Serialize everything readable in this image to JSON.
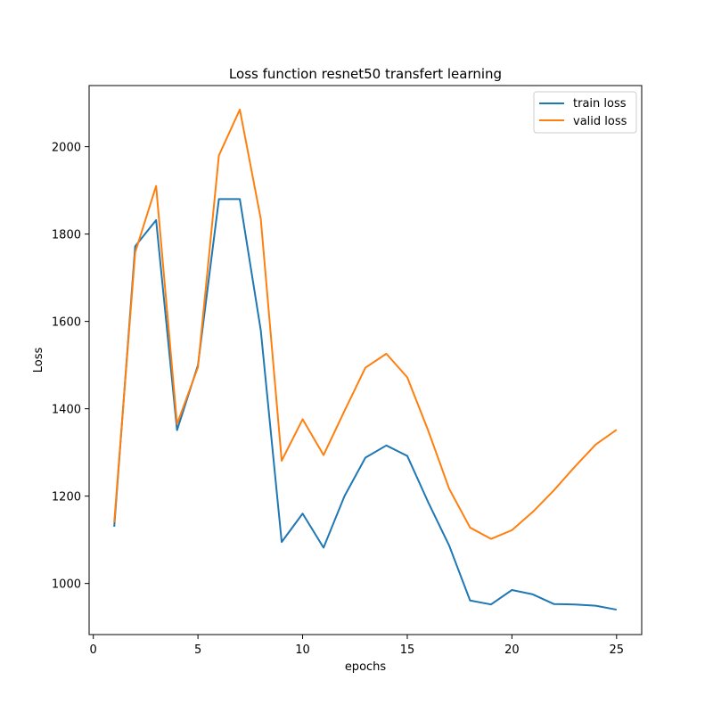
{
  "chart_data": {
    "type": "line",
    "title": "Loss function resnet50 transfert learning",
    "xlabel": "epochs",
    "ylabel": "Loss",
    "xlim": [
      -0.2,
      26.2
    ],
    "ylim": [
      883,
      2140
    ],
    "xticks": [
      0,
      5,
      10,
      15,
      20,
      25
    ],
    "yticks": [
      1000,
      1200,
      1400,
      1600,
      1800,
      2000
    ],
    "grid": false,
    "legend_position": "top-right",
    "x": [
      1,
      2,
      3,
      4,
      5,
      6,
      7,
      8,
      9,
      10,
      11,
      12,
      13,
      14,
      15,
      16,
      17,
      18,
      19,
      20,
      21,
      22,
      23,
      24,
      25
    ],
    "series": [
      {
        "name": "train loss",
        "color": "#1f77b4",
        "values": [
          1130,
          1772,
          1832,
          1351,
          1500,
          1880,
          1880,
          1580,
          1095,
          1160,
          1082,
          1200,
          1288,
          1316,
          1292,
          1186,
          1087,
          961,
          952,
          985,
          975,
          953,
          952,
          949,
          940
        ]
      },
      {
        "name": "valid loss",
        "color": "#ff7f0e",
        "values": [
          1140,
          1758,
          1910,
          1365,
          1495,
          1980,
          2085,
          1835,
          1281,
          1376,
          1294,
          1395,
          1494,
          1526,
          1472,
          1350,
          1217,
          1128,
          1102,
          1122,
          1164,
          1213,
          1267,
          1318,
          1352
        ]
      }
    ]
  }
}
